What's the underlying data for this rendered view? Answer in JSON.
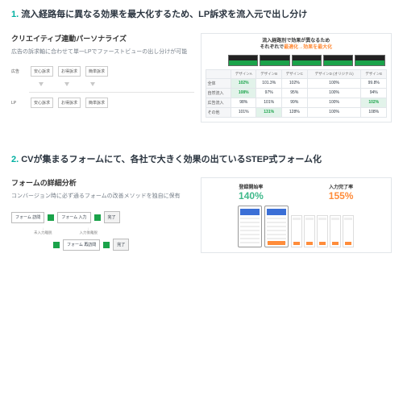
{
  "s1": {
    "num": "1.",
    "title": "流入経路毎に異なる効果を最大化するため、LP訴求を流入元で出し分け",
    "subTitle": "クリエイティブ連動パーソナライズ",
    "desc": "広告の訴求軸に合わせて単一LPでファーストビューの出し分けが可能",
    "diag": {
      "row1Label": "広告",
      "row2Label": "LP",
      "boxes": [
        "安心訴求",
        "お得訴求",
        "簡単訴求"
      ]
    },
    "table": {
      "headLine1": "流入経路別で効果が異なるため",
      "headLine2a": "それぞれで",
      "headLine2b": "最適化→効果を最大化",
      "cols": [
        "",
        "デザインA",
        "デザインB",
        "デザインC",
        "デザインD (オリジナル)",
        "デザインE"
      ],
      "rows": [
        {
          "h": "全体",
          "c": [
            "102%",
            "101.3%",
            "102%",
            "100%",
            "99.8%"
          ],
          "hl": [
            0
          ]
        },
        {
          "h": "自然流入",
          "c": [
            "108%",
            "97%",
            "95%",
            "100%",
            "94%"
          ],
          "hl": [
            0
          ]
        },
        {
          "h": "広告流入",
          "c": [
            "98%",
            "101%",
            "99%",
            "100%",
            "102%"
          ],
          "hl": [
            4
          ]
        },
        {
          "h": "その他",
          "c": [
            "101%",
            "131%",
            "128%",
            "100%",
            "108%"
          ],
          "hl": [
            1
          ]
        }
      ]
    }
  },
  "s2": {
    "num": "2.",
    "title": "CVが集まるフォームにて、各社で大きく効果の出ているSTEP式フォーム化",
    "subTitle": "フォームの詳細分析",
    "desc": "コンバージョン時に必ず通るフォームの改善メソッドを独自に保有",
    "flow": {
      "b1": "フォーム\n訪問",
      "b2": "フォーム\n入力",
      "b3": "完了",
      "u1": "未入力離脱",
      "u2": "入力後離脱",
      "b4": "フォーム\n再訪問",
      "b5": "完了"
    },
    "kpi1Label": "登録開始率",
    "kpi1Value": "140%",
    "kpi2Label": "入力完了率",
    "kpi2Value": "155%"
  },
  "colors": {
    "accent": "#00b0a1",
    "green": "#1aa34a",
    "orange": "#ff8c3a",
    "kpiGreen": "#3fb98b"
  }
}
